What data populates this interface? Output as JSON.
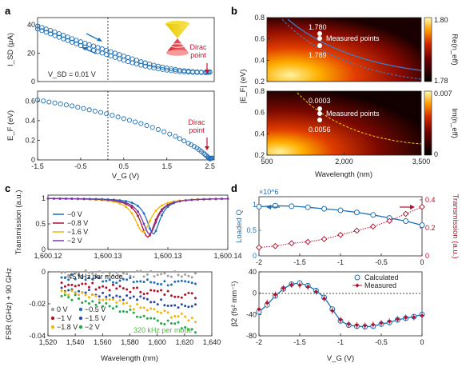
{
  "chart_data": [
    {
      "panel": "a",
      "type": "line",
      "panel_label": "a",
      "ylabel": "I_SD (μA)",
      "ylim": [
        0,
        45
      ],
      "yticks": [
        "0",
        "20",
        "40"
      ],
      "note": "V_SD = 0.01 V",
      "annotation": "Dirac point",
      "series": [
        {
          "name": "",
          "x": [
            -1.5,
            -1.2,
            -0.9,
            -0.6,
            -0.3,
            0,
            0.3,
            0.6,
            0.9,
            1.2,
            1.5,
            1.8,
            2.1,
            2.4,
            2.5
          ],
          "y": [
            39,
            36,
            32.5,
            29,
            26,
            23,
            20,
            17,
            14,
            11.5,
            9.5,
            8,
            7,
            6.5,
            6.8
          ]
        },
        {
          "name": "",
          "x": [
            -1.5,
            -1.2,
            -0.9,
            -0.6,
            -0.3,
            0,
            0.3,
            0.6,
            0.9,
            1.2,
            1.5,
            1.8,
            2.1,
            2.4,
            2.5
          ],
          "y": [
            37,
            33.5,
            30,
            26.5,
            23,
            20,
            17,
            14,
            11.5,
            9.5,
            8,
            7,
            6.5,
            6.3,
            6.6
          ]
        }
      ]
    },
    {
      "panel": "a-lower",
      "type": "line",
      "ylabel": "E_F (eV)",
      "xlabel": "V_G (V)",
      "ylim": [
        0,
        0.7
      ],
      "xlim": [
        -1.5,
        2.6
      ],
      "yticks": [
        "0",
        "0.2",
        "0.4",
        "0.6"
      ],
      "xticks": [
        "-1.5",
        "-0.5",
        "0.5",
        "1.5",
        "2.5"
      ],
      "annotation": "Dirac point",
      "series": [
        {
          "name": "",
          "x": [
            -1.5,
            -1.1,
            -0.7,
            -0.3,
            0.1,
            0.5,
            0.9,
            1.3,
            1.7,
            2.0,
            2.2,
            2.35,
            2.45,
            2.5,
            2.55
          ],
          "y": [
            0.61,
            0.58,
            0.55,
            0.51,
            0.47,
            0.42,
            0.37,
            0.31,
            0.24,
            0.17,
            0.12,
            0.07,
            0.03,
            0.01,
            0.02
          ]
        }
      ]
    },
    {
      "panel": "b",
      "type": "heatmap",
      "panel_label": "b",
      "ylabel": "|E_F| (eV)",
      "xlabel": "Wavelength (nm)",
      "ylim": [
        0.2,
        0.8
      ],
      "xlim": [
        500,
        3500
      ],
      "yticks": [
        "0.2",
        "0.4",
        "0.6",
        "0.8"
      ],
      "xticks": [
        "500",
        "2,000",
        "3,500"
      ],
      "top": {
        "colorbar_label": "Re(n_eff)",
        "cbar_min": "1.78",
        "cbar_max": "1.80",
        "value_top": "1.780",
        "value_bottom": "1.789",
        "points_label": "Measured points"
      },
      "bottom": {
        "colorbar_label": "Im(n_eff)",
        "cbar_min": "0",
        "cbar_max": "0.007",
        "value_top": "0.0003",
        "value_bottom": "0.0056",
        "points_label": "Measured points"
      }
    },
    {
      "panel": "c",
      "type": "line",
      "panel_label": "c",
      "ylabel": "Transmission (a.u.)",
      "ylim": [
        0,
        1
      ],
      "yticks": [
        "0",
        "0.5",
        "1"
      ],
      "xticks": [
        "1,600.12",
        "1,600.13",
        "1,600.13",
        "1,600.14"
      ],
      "legend": [
        "−0 V",
        "−0.8 V",
        "−1.6 V",
        "−2 V"
      ],
      "series": [
        {
          "name": "−0 V",
          "color": "#1f6fb5",
          "center": 0.586,
          "width": 0.045,
          "depth": 0.7
        },
        {
          "name": "−0.8 V",
          "color": "#b0122c",
          "center": 0.555,
          "width": 0.05,
          "depth": 0.76
        },
        {
          "name": "−1.6 V",
          "color": "#f2b705",
          "center": 0.528,
          "width": 0.055,
          "depth": 0.66
        },
        {
          "name": "−2 V",
          "color": "#7a3aa8",
          "center": 0.565,
          "width": 0.05,
          "depth": 0.7
        }
      ]
    },
    {
      "panel": "c-lower",
      "type": "scatter",
      "ylabel": "FSR (GHz) + 90 GHz",
      "xlabel": "Wavelength (nm)",
      "xlim": [
        1520,
        1640
      ],
      "ylim": [
        -0.04,
        0.0
      ],
      "yticks": [
        "0",
        "-0.02",
        "-0.04"
      ],
      "xticks": [
        "1,520",
        "1,540",
        "1,560",
        "1,580",
        "1,600",
        "1,620",
        "1,640"
      ],
      "annotation_top": "−45 kHz per mode",
      "annotation_bottom": "320 kHz per mode",
      "legend": [
        "0 V",
        "−0.5 V",
        "−1 V",
        "−1.5 V",
        "−1.8 V",
        "−2 V"
      ],
      "series": [
        {
          "name": "0 V",
          "color": "#a0a0a0",
          "x0": 1530,
          "x1": 1628,
          "y0": -0.0005,
          "y1": -0.002
        },
        {
          "name": "−0.5 V",
          "color": "#1f6fb5",
          "x0": 1530,
          "x1": 1628,
          "y0": -0.003,
          "y1": -0.008
        },
        {
          "name": "−1 V",
          "color": "#b0122c",
          "x0": 1530,
          "x1": 1628,
          "y0": -0.007,
          "y1": -0.015
        },
        {
          "name": "−1.5 V",
          "color": "#2a4aa5",
          "x0": 1530,
          "x1": 1628,
          "y0": -0.01,
          "y1": -0.022
        },
        {
          "name": "−1.8 V",
          "color": "#f2b705",
          "x0": 1530,
          "x1": 1628,
          "y0": -0.012,
          "y1": -0.03
        },
        {
          "name": "−2 V",
          "color": "#22a84a",
          "x0": 1530,
          "x1": 1628,
          "y0": -0.014,
          "y1": -0.036
        }
      ]
    },
    {
      "panel": "d",
      "type": "line",
      "panel_label": "d",
      "ylabel": "Loaded Q",
      "y2label": "Transmission (a.u.)",
      "multiplier": "×10^6",
      "xlim": [
        -2,
        0
      ],
      "ylim": [
        0,
        1.0
      ],
      "y2lim": [
        0,
        0.4
      ],
      "yticks": [
        "0",
        "0.5",
        "1"
      ],
      "y2ticks": [
        "0",
        "0.2",
        "0.4"
      ],
      "xticks": [
        "-2",
        "-1.5",
        "-1",
        "-0.5",
        "0"
      ],
      "series": [
        {
          "name": "",
          "color": "#1f6fb5",
          "x": [
            -2,
            -1.8,
            -1.6,
            -1.4,
            -1.2,
            -1.0,
            -0.8,
            -0.6,
            -0.4,
            -0.2,
            0
          ],
          "y": [
            0.96,
            0.98,
            0.97,
            0.95,
            0.92,
            0.89,
            0.85,
            0.8,
            0.74,
            0.68,
            0.6
          ]
        },
        {
          "name": "",
          "color": "#b0122c",
          "x": [
            -2,
            -1.8,
            -1.6,
            -1.4,
            -1.2,
            -1.0,
            -0.8,
            -0.6,
            -0.4,
            -0.2,
            0
          ],
          "y": [
            0.06,
            0.07,
            0.09,
            0.1,
            0.12,
            0.15,
            0.18,
            0.21,
            0.25,
            0.3,
            0.35
          ]
        }
      ]
    },
    {
      "panel": "d-lower",
      "type": "line",
      "ylabel": "β2 (fs² mm⁻¹)",
      "xlabel": "V_G (V)",
      "xlim": [
        -2,
        0
      ],
      "ylim": [
        -80,
        40
      ],
      "yticks": [
        "40",
        "0",
        "-40",
        "-80"
      ],
      "xticks": [
        "-2",
        "-1.5",
        "-1",
        "-0.5",
        "0"
      ],
      "legend": [
        "Calculated",
        "Measured"
      ],
      "series": [
        {
          "name": "Calculated",
          "color": "#1f6fb5",
          "x": [
            -2,
            -1.9,
            -1.8,
            -1.7,
            -1.6,
            -1.5,
            -1.4,
            -1.3,
            -1.2,
            -1.1,
            -1.0,
            -0.9,
            -0.8,
            -0.7,
            -0.6,
            -0.5,
            -0.4,
            -0.3,
            -0.2,
            -0.1,
            0
          ],
          "y": [
            -35,
            -22,
            -5,
            8,
            17,
            19,
            14,
            5,
            -8,
            -30,
            -52,
            -60,
            -62,
            -63,
            -62,
            -58,
            -55,
            -50,
            -47,
            -44,
            -40
          ]
        },
        {
          "name": "Measured",
          "color": "#b0122c",
          "x": [
            -2,
            -1.9,
            -1.8,
            -1.7,
            -1.6,
            -1.5,
            -1.4,
            -1.3,
            -1.2,
            -1.1,
            -1.0,
            -0.9,
            -0.8,
            -0.7,
            -0.6,
            -0.5,
            -0.4,
            -0.3,
            -0.2,
            -0.1,
            0
          ],
          "y": [
            -30,
            -18,
            -3,
            9,
            16,
            15,
            12,
            3,
            -10,
            -33,
            -50,
            -58,
            -60,
            -61,
            -59,
            -56,
            -53,
            -49,
            -46,
            -45,
            -42
          ]
        }
      ]
    }
  ]
}
